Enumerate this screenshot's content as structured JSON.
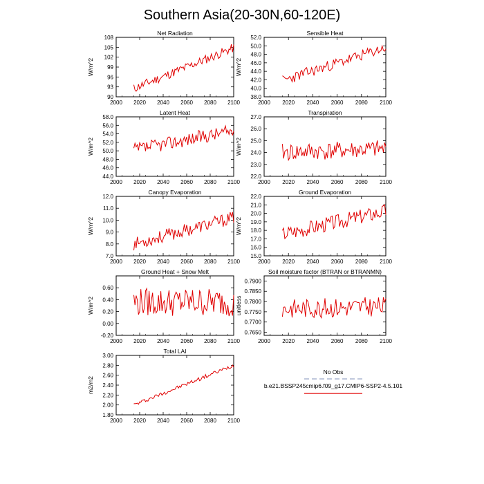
{
  "page_title": "Southern Asia(20-30N,60-120E)",
  "legend": {
    "obs_label": "No Obs",
    "obs_color": "#9ba6c8",
    "model_label": "b.e21.BSSP245cmip6.f09_g17.CMIP6-SSP2-4.5.101",
    "model_color": "#e00000"
  },
  "chart_data": [
    {
      "id": "net-radiation",
      "type": "line",
      "title": "Net Radiation",
      "ylabel": "W/m^2",
      "xlim": [
        2000,
        2100
      ],
      "ylim": [
        90,
        108
      ],
      "xticks": [
        "2000",
        "2020",
        "2040",
        "2060",
        "2080",
        "2100"
      ],
      "yticks": [
        "90",
        "93",
        "96",
        "99",
        "102",
        "105",
        "108"
      ],
      "x_start": 2015,
      "x_end": 2100,
      "start": 92.5,
      "end": 104.8,
      "amp": 1.4,
      "seed": 11
    },
    {
      "id": "sensible-heat",
      "type": "line",
      "title": "Sensible Heat",
      "ylabel": "W/m^2",
      "xlim": [
        2000,
        2100
      ],
      "ylim": [
        38,
        52
      ],
      "xticks": [
        "2000",
        "2020",
        "2040",
        "2060",
        "2080",
        "2100"
      ],
      "yticks": [
        "38.0",
        "40.0",
        "42.0",
        "44.0",
        "46.0",
        "48.0",
        "50.0",
        "52.0"
      ],
      "x_start": 2015,
      "x_end": 2100,
      "start": 41.8,
      "end": 49.6,
      "amp": 1.3,
      "seed": 23
    },
    {
      "id": "latent-heat",
      "type": "line",
      "title": "Latent Heat",
      "ylabel": "W/m^2",
      "xlim": [
        2000,
        2100
      ],
      "ylim": [
        44,
        58
      ],
      "xticks": [
        "2000",
        "2020",
        "2040",
        "2060",
        "2080",
        "2100"
      ],
      "yticks": [
        "44.0",
        "46.0",
        "48.0",
        "50.0",
        "52.0",
        "54.0",
        "56.0",
        "58.0"
      ],
      "x_start": 2015,
      "x_end": 2100,
      "start": 50.2,
      "end": 54.8,
      "amp": 1.6,
      "seed": 37
    },
    {
      "id": "transpiration",
      "type": "line",
      "title": "Transpiration",
      "ylabel": "W/m^2",
      "xlim": [
        2000,
        2100
      ],
      "ylim": [
        22,
        27
      ],
      "xticks": [
        "2000",
        "2020",
        "2040",
        "2060",
        "2080",
        "2100"
      ],
      "yticks": [
        "22.0",
        "23.0",
        "24.0",
        "25.0",
        "26.0",
        "27.0"
      ],
      "x_start": 2015,
      "x_end": 2100,
      "start": 24.0,
      "end": 24.3,
      "amp": 0.75,
      "seed": 41
    },
    {
      "id": "canopy-evaporation",
      "type": "line",
      "title": "Canopy Evaporation",
      "ylabel": "W/m^2",
      "xlim": [
        2000,
        2100
      ],
      "ylim": [
        7,
        12
      ],
      "xticks": [
        "2000",
        "2020",
        "2040",
        "2060",
        "2080",
        "2100"
      ],
      "yticks": [
        "7.0",
        "8.0",
        "9.0",
        "10.0",
        "11.0",
        "12.0"
      ],
      "x_start": 2015,
      "x_end": 2100,
      "start": 8.0,
      "end": 10.2,
      "amp": 0.55,
      "seed": 53
    },
    {
      "id": "ground-evaporation",
      "type": "line",
      "title": "Ground Evaporation",
      "ylabel": "W/m^2",
      "xlim": [
        2000,
        2100
      ],
      "ylim": [
        15,
        22
      ],
      "xticks": [
        "2000",
        "2020",
        "2040",
        "2060",
        "2080",
        "2100"
      ],
      "yticks": [
        "15.0",
        "16.0",
        "17.0",
        "18.0",
        "19.0",
        "20.0",
        "21.0",
        "22.0"
      ],
      "x_start": 2015,
      "x_end": 2100,
      "start": 17.6,
      "end": 20.3,
      "amp": 0.9,
      "seed": 67
    },
    {
      "id": "ground-heat-snow-melt",
      "type": "line",
      "title": "Ground Heat + Snow Melt",
      "ylabel": "W/m^2",
      "xlim": [
        2000,
        2100
      ],
      "ylim": [
        -0.2,
        0.8
      ],
      "xticks": [
        "2000",
        "2020",
        "2040",
        "2060",
        "2080",
        "2100"
      ],
      "yticks": [
        "-0.20",
        "0.00",
        "0.20",
        "0.40",
        "0.60"
      ],
      "x_start": 2015,
      "x_end": 2100,
      "start": 0.36,
      "end": 0.36,
      "amp": 0.24,
      "seed": 79
    },
    {
      "id": "soil-moisture-factor",
      "type": "line",
      "title": "Soil moisture factor (BTRAN or BTRANMN)",
      "ylabel": "unitless",
      "xlim": [
        2000,
        2100
      ],
      "ylim": [
        0.7635,
        0.7925
      ],
      "xticks": [
        "2000",
        "2020",
        "2040",
        "2060",
        "2080",
        "2100"
      ],
      "yticks": [
        "0.7650",
        "0.7700",
        "0.7750",
        "0.7800",
        "0.7850",
        "0.7900"
      ],
      "x_start": 2015,
      "x_end": 2100,
      "start": 0.7765,
      "end": 0.7775,
      "amp": 0.0048,
      "seed": 83
    },
    {
      "id": "total-lai",
      "type": "line",
      "title": "Total LAI",
      "ylabel": "m2/m2",
      "xlim": [
        2000,
        2100
      ],
      "ylim": [
        1.8,
        3.0
      ],
      "xticks": [
        "2000",
        "2020",
        "2040",
        "2060",
        "2080",
        "2100"
      ],
      "yticks": [
        "1.80",
        "2.00",
        "2.20",
        "2.40",
        "2.60",
        "2.80",
        "3.00"
      ],
      "x_start": 2015,
      "x_end": 2100,
      "start": 2.0,
      "end": 2.8,
      "amp": 0.04,
      "seed": 97
    }
  ]
}
